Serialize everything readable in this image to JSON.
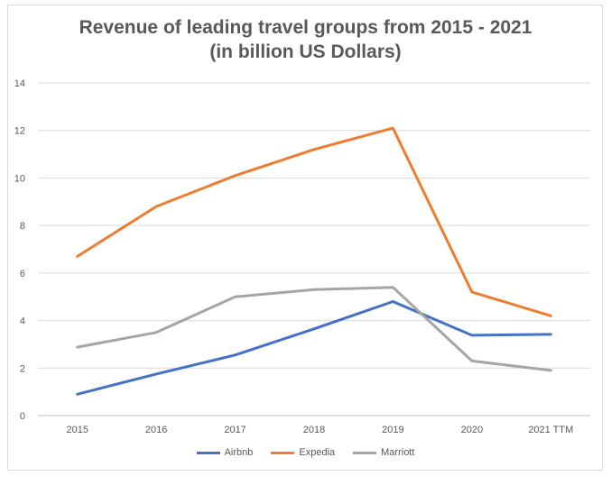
{
  "chart_data": {
    "type": "line",
    "title_lines": [
      "Revenue of leading travel groups from 2015  - 2021",
      "(in billion US Dollars)"
    ],
    "categories": [
      "2015",
      "2016",
      "2017",
      "2018",
      "2019",
      "2020",
      "2021 TTM"
    ],
    "series": [
      {
        "name": "Airbnb",
        "color": "#4472c4",
        "values": [
          0.9,
          1.75,
          2.55,
          3.65,
          4.8,
          3.38,
          3.42
        ]
      },
      {
        "name": "Expedia",
        "color": "#ed7d31",
        "values": [
          6.7,
          8.8,
          10.1,
          11.2,
          12.1,
          5.2,
          4.2
        ]
      },
      {
        "name": "Marriott",
        "color": "#a5a5a5",
        "values": [
          2.88,
          3.5,
          5.0,
          5.3,
          5.4,
          2.3,
          1.9
        ]
      }
    ],
    "yticks": [
      "0",
      "2",
      "4",
      "6",
      "8",
      "10",
      "12",
      "14"
    ],
    "ylim": [
      0,
      14
    ],
    "grid": true,
    "legend_position": "bottom"
  }
}
